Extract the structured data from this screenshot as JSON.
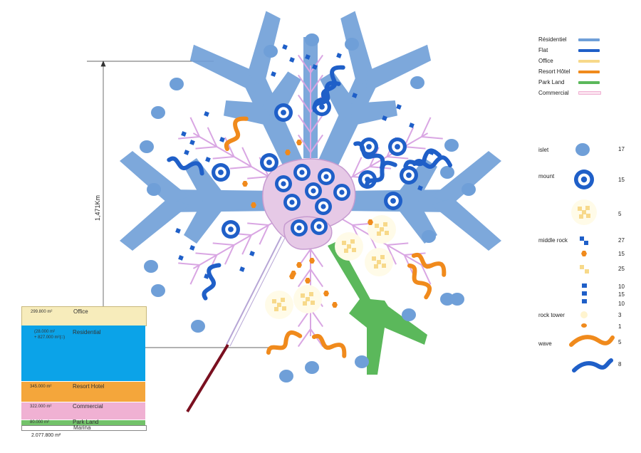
{
  "dimension_label": "1,471Km",
  "use_legend": [
    {
      "label": "Résidentiel",
      "color": "#6f9fd8"
    },
    {
      "label": "Flat",
      "color": "#1f5fc8"
    },
    {
      "label": "Office",
      "color": "#f7d98a"
    },
    {
      "label": "Resort Hôtel",
      "color": "#f08a1c"
    },
    {
      "label": "Park Land",
      "color": "#5bb85b"
    },
    {
      "label": "Commercial",
      "color": "#f3c6dc"
    }
  ],
  "element_legend": [
    {
      "label": "islet",
      "count": "17",
      "icon": "islet-icon"
    },
    {
      "label": "mount",
      "count": "15",
      "icon": "mount-icon"
    },
    {
      "label": "",
      "count": "5",
      "icon": "office-rock-icon"
    },
    {
      "label": "middle rock",
      "count": "27",
      "icon": "blue-rock-icon"
    },
    {
      "label": "",
      "count": "15",
      "icon": "orange-hexagon-icon"
    },
    {
      "label": "",
      "count": "25",
      "icon": "yellow-rock-icon"
    },
    {
      "label": "",
      "count": "10",
      "icon": "blue-square-icon"
    },
    {
      "label": "",
      "count": "15",
      "icon": "blue-square-icon"
    },
    {
      "label": "",
      "count": "10",
      "icon": "blue-square-icon"
    },
    {
      "label": "rock tower",
      "count": "3",
      "icon": "yellow-tower-icon"
    },
    {
      "label": "",
      "count": "1",
      "icon": "orange-tower-icon"
    },
    {
      "label": "wave",
      "count": "5",
      "icon": "orange-wave-icon"
    },
    {
      "label": "",
      "count": "8",
      "icon": "blue-wave-icon"
    }
  ],
  "area_table": {
    "rows": [
      {
        "area": "299.800 m²",
        "name": "Office",
        "color": "#f7ecbb"
      },
      {
        "area_line1": "(28.000 m²",
        "area_line2": "+ 827.000 m²(□)",
        "name": "Residential",
        "color": "#0ba3e8"
      },
      {
        "area": "345.000 m²",
        "name": "Resort Hotel",
        "color": "#f4a63b"
      },
      {
        "area": "322.000 m²",
        "name": "Commercial",
        "color": "#f0b1d3"
      },
      {
        "area": "80.000 m²",
        "name": "Park Land",
        "color": "#72c26a"
      },
      {
        "area": "",
        "name": "Marina",
        "color": "#ffffff"
      }
    ],
    "total": "2.077.800 m²"
  }
}
